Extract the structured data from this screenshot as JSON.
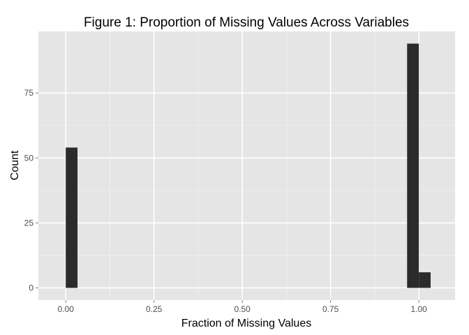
{
  "chart_data": {
    "type": "bar",
    "subtype": "histogram",
    "title": "Figure 1: Proportion of Missing Values Across Variables",
    "xlabel": "Fraction of Missing Values",
    "ylabel": "Count",
    "xlim": [
      -0.0775,
      1.1025
    ],
    "ylim": [
      -4.7,
      98.7
    ],
    "x_ticks": [
      0,
      0.25,
      0.5,
      0.75,
      1.0
    ],
    "x_tick_labels": [
      "0.00",
      "0.25",
      "0.50",
      "0.75",
      "1.00"
    ],
    "y_ticks": [
      0,
      25,
      50,
      75
    ],
    "y_tick_labels": [
      "0",
      "25",
      "50",
      "75"
    ],
    "bins": [
      {
        "x0": 0.0,
        "x1": 0.0333,
        "count": 54
      },
      {
        "x0": 0.9667,
        "x1": 1.0,
        "count": 94
      },
      {
        "x0": 1.0,
        "x1": 1.0333,
        "count": 6
      }
    ],
    "bar_color": "#2b2b2b",
    "panel_background": "#e5e5e5",
    "grid_color": "#ffffff",
    "grid": true,
    "legend": "none"
  }
}
